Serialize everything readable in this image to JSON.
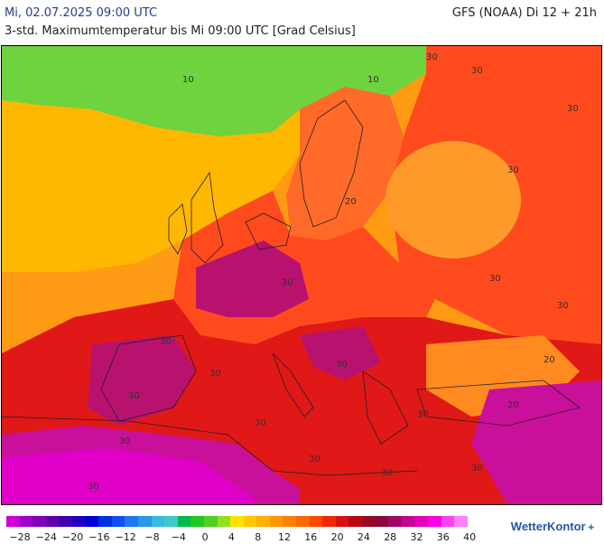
{
  "header": {
    "date_time": "Mi, 02.07.2025 09:00 UTC",
    "model_run": "GFS (NOAA) Di 12 + 21h",
    "subtitle": "3-std. Maximumtemperatur bis Mi 09:00 UTC [Grad Celsius]"
  },
  "map": {
    "isotherm_labels": [
      "30",
      "30",
      "30",
      "30",
      "30",
      "30",
      "30",
      "30",
      "30",
      "30",
      "30",
      "30",
      "30",
      "30",
      "30",
      "30",
      "30",
      "30",
      "30",
      "10",
      "10",
      "20",
      "20",
      "20"
    ],
    "colors": {
      "sea_cool": "#6fd23f",
      "atlantic_warm": "#ffb800",
      "atlantic_orange": "#ff9a14",
      "land_hot": "#ff4a1e",
      "land_very_hot": "#e01818",
      "extreme": "#b8126e",
      "africa": "#e000c8",
      "east_hot": "#ff6a28"
    }
  },
  "legend": {
    "swatch_colors": [
      "#d000d8",
      "#a000c8",
      "#8000b8",
      "#6000a8",
      "#4000b0",
      "#2000c0",
      "#0000d0",
      "#0030e0",
      "#1050f0",
      "#1c78f0",
      "#2a98e8",
      "#38b8e0",
      "#40c8c8",
      "#00b850",
      "#20c820",
      "#50d020",
      "#90e020",
      "#ffe000",
      "#ffc800",
      "#ffb000",
      "#ff9800",
      "#ff8000",
      "#ff6800",
      "#ff4800",
      "#f02808",
      "#d81010",
      "#b80810",
      "#980820",
      "#880840",
      "#a00868",
      "#c00890",
      "#e000b8",
      "#ff00e0",
      "#ff40f0",
      "#ff80f8"
    ],
    "tick_labels": [
      "−28",
      "−24",
      "−20",
      "−16",
      "−12",
      "−8",
      "−4",
      "0",
      "4",
      "8",
      "12",
      "16",
      "20",
      "24",
      "28",
      "32",
      "36",
      "40"
    ]
  },
  "brand": {
    "logo_text": "WetterKontor"
  }
}
